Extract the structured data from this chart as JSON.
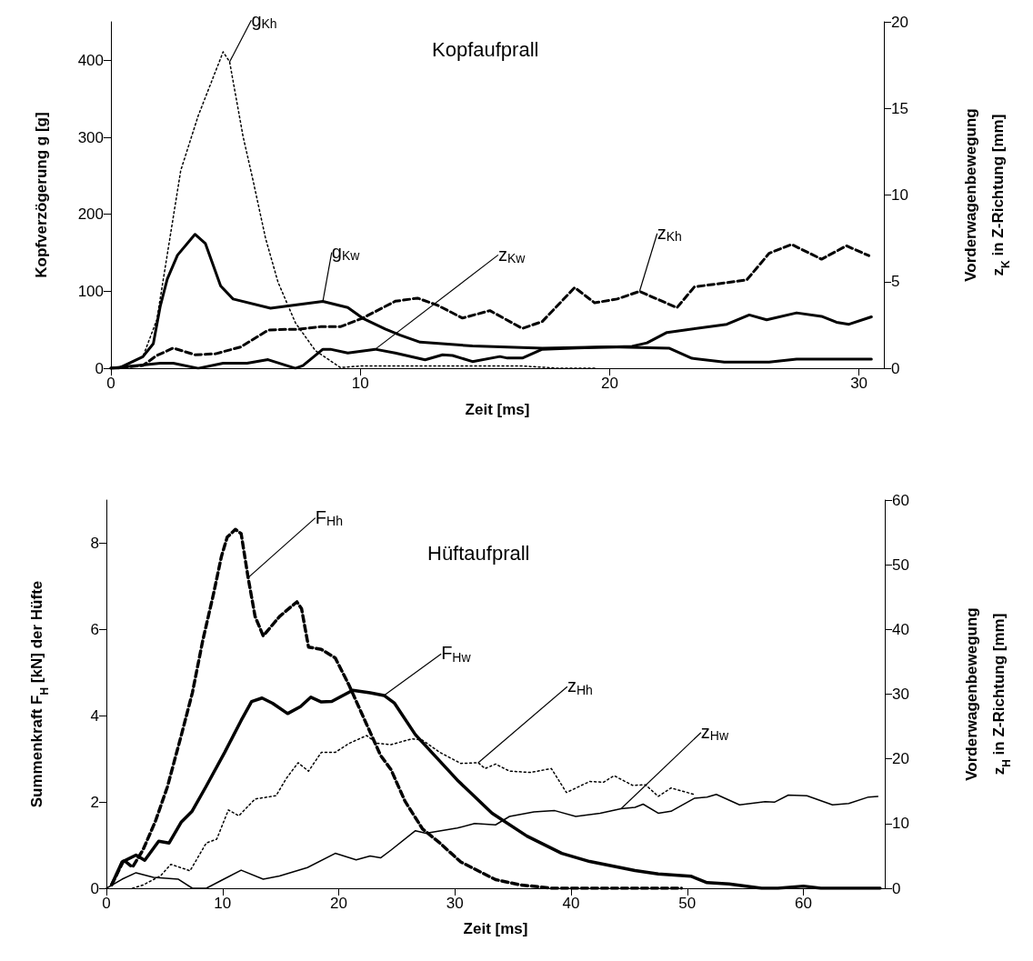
{
  "chart_data": [
    {
      "type": "line",
      "title": "Kopfaufprall",
      "xlabel": "Zeit [ms]",
      "ylabel": "Kopfverzögerung g [g]",
      "y2label": "Vorderwagenbewegung\nz$_{K}$ in Z-Richtung [mm]",
      "xlim": [
        0,
        31
      ],
      "xticks": [
        0,
        10,
        20,
        30
      ],
      "ylim": [
        0,
        450
      ],
      "yticks": [
        0,
        100,
        200,
        300,
        400
      ],
      "y2lim": [
        0,
        20
      ],
      "y2ticks": [
        0,
        5,
        10,
        15,
        20
      ],
      "grid": false,
      "marker": "none",
      "series": [
        {
          "name": "g$_{Kh}$",
          "color": "#000000",
          "line_style": "dotted",
          "x": [
            0,
            0.3,
            1.28,
            1.84,
            2.3,
            2.8,
            3.5,
            4.5,
            4.76,
            5.3,
            5.7,
            6.2,
            6.7,
            7.4,
            8.2,
            9.2,
            10,
            16.5,
            18,
            19.5
          ],
          "values": [
            0,
            0,
            15,
            63,
            156,
            257,
            328,
            411,
            398,
            301,
            244,
            169,
            112,
            59,
            23,
            1,
            3,
            3,
            0,
            0
          ]
        },
        {
          "name": "g$_{Kw}$",
          "color": "#000000",
          "line_style": "solid",
          "x": [
            0,
            0.3,
            1.28,
            1.7,
            1.98,
            2.26,
            2.67,
            3.37,
            3.79,
            4.4,
            4.9,
            6.4,
            8.5,
            9.5,
            10.1,
            11.0,
            11.6,
            12.4,
            14.5,
            17.3,
            20,
            22.4,
            23.3,
            24.6,
            26.4,
            27.5,
            30.5
          ],
          "values": [
            0,
            0,
            15,
            32,
            81,
            116,
            147,
            174,
            162,
            107,
            90,
            78,
            87,
            79,
            65,
            51,
            43,
            34,
            29,
            26,
            28,
            26,
            13,
            8,
            8,
            12,
            12
          ]
        },
        {
          "name": "z$_{Kw}$",
          "color": "#000000",
          "line_style": "solid",
          "axis": "y2",
          "x": [
            0,
            1.98,
            2.5,
            3.5,
            4.5,
            5.46,
            6.3,
            6.85,
            7.4,
            7.7,
            8.5,
            8.8,
            9.5,
            10.6,
            11.4,
            12.6,
            13.3,
            13.7,
            14.5,
            15.6,
            15.9,
            16.5,
            17.3,
            18.7,
            20.9,
            21.5,
            22.3,
            24.7,
            25.6,
            26.3,
            27.5,
            28.5,
            29.1,
            29.6,
            30.5
          ],
          "values": [
            0,
            0.29,
            0.29,
            0,
            0.29,
            0.29,
            0.5,
            0.25,
            0,
            0.16,
            1.1,
            1.1,
            0.88,
            1.1,
            0.88,
            0.49,
            0.78,
            0.74,
            0.39,
            0.68,
            0.59,
            0.59,
            1.1,
            1.17,
            1.27,
            1.47,
            2.07,
            2.54,
            3.08,
            2.8,
            3.2,
            3.0,
            2.66,
            2.54,
            2.97
          ]
        },
        {
          "name": "z$_{Kh}$",
          "color": "#000000",
          "line_style": "dashed",
          "axis": "y2",
          "x": [
            0,
            1.28,
            1.84,
            2.5,
            3.37,
            4.2,
            5.2,
            6.3,
            7.0,
            7.5,
            8.4,
            9.2,
            10.1,
            11.4,
            12.3,
            13.1,
            14.1,
            15.2,
            16.5,
            17.3,
            18.6,
            19.4,
            20.3,
            21.2,
            22.7,
            23.4,
            25.5,
            26.4,
            27.3,
            28.5,
            29.5,
            30.4
          ],
          "values": [
            0,
            0.16,
            0.74,
            1.17,
            0.78,
            0.84,
            1.23,
            2.2,
            2.25,
            2.25,
            2.4,
            2.4,
            2.9,
            3.87,
            4.05,
            3.64,
            2.9,
            3.33,
            2.3,
            2.7,
            4.66,
            3.78,
            4.0,
            4.44,
            3.5,
            4.7,
            5.1,
            6.64,
            7.15,
            6.3,
            7.07,
            6.5
          ]
        }
      ]
    },
    {
      "type": "line",
      "title": "Hüftaufprall",
      "xlabel": "Zeit [ms]",
      "ylabel": "Summenkraft F$_{H}$ [kN] der Hüfte",
      "y2label": "Vorderwagenbewegung\nz$_{H}$ in Z-Richtung [mm]",
      "xlim": [
        0,
        67
      ],
      "xticks": [
        0,
        10,
        20,
        30,
        40,
        50,
        60
      ],
      "ylim": [
        0,
        9
      ],
      "yticks": [
        0,
        2,
        4,
        6,
        8
      ],
      "y2lim": [
        0,
        60
      ],
      "y2ticks": [
        0,
        10,
        20,
        30,
        40,
        50,
        60
      ],
      "grid": false,
      "marker": "none",
      "series": [
        {
          "name": "F$_{Hh}$",
          "color": "#000000",
          "line_style": "dashed",
          "x": [
            0.45,
            1.5,
            2.25,
            3.15,
            4.2,
            5.25,
            6.46,
            7.4,
            8.3,
            9.2,
            9.9,
            10.4,
            11.1,
            11.6,
            12.2,
            12.8,
            13.5,
            14.9,
            16.4,
            16.8,
            17.4,
            18.5,
            19.7,
            20.9,
            22.4,
            23.6,
            24.5,
            25.7,
            27.2,
            28.7,
            30.5,
            33.5,
            35.6,
            38.3,
            49.5
          ],
          "values": [
            0.08,
            0.65,
            0.49,
            0.89,
            1.54,
            2.35,
            3.56,
            4.53,
            5.75,
            6.8,
            7.69,
            8.14,
            8.32,
            8.22,
            7.2,
            6.3,
            5.85,
            6.3,
            6.64,
            6.48,
            5.59,
            5.54,
            5.34,
            4.7,
            3.8,
            3.08,
            2.75,
            2.02,
            1.38,
            1.05,
            0.61,
            0.2,
            0.08,
            0,
            0
          ]
        },
        {
          "name": "F$_{Hw}$",
          "color": "#000000",
          "line_style": "solid",
          "x": [
            0.45,
            1.35,
            2.55,
            3.3,
            4.5,
            5.4,
            6.46,
            7.36,
            8.56,
            10.2,
            11.6,
            12.5,
            13.4,
            14.3,
            15.6,
            16.7,
            17.6,
            18.5,
            19.4,
            21.2,
            22.7,
            23.9,
            24.8,
            26.6,
            30.2,
            33.2,
            36.2,
            39.2,
            41.6,
            45.5,
            47.5,
            50.3,
            51.7,
            53.6,
            56.4,
            57.8,
            60,
            61.5,
            66.6
          ],
          "values": [
            0.08,
            0.61,
            0.77,
            0.65,
            1.09,
            1.05,
            1.54,
            1.78,
            2.35,
            3.16,
            3.89,
            4.33,
            4.41,
            4.29,
            4.05,
            4.21,
            4.43,
            4.32,
            4.33,
            4.59,
            4.53,
            4.47,
            4.29,
            3.56,
            2.51,
            1.74,
            1.21,
            0.81,
            0.62,
            0.41,
            0.33,
            0.28,
            0.13,
            0.1,
            0,
            0,
            0.05,
            0,
            0
          ]
        },
        {
          "name": "z$_{Hh}$",
          "color": "#000000",
          "line_style": "dotted",
          "axis": "y2",
          "x": [
            2.25,
            3.15,
            4.65,
            5.55,
            7.2,
            8.6,
            9.5,
            10.5,
            11.4,
            12.8,
            14.6,
            15.5,
            16.5,
            17.4,
            18.5,
            19.7,
            20.9,
            22.4,
            23.3,
            24.5,
            26.3,
            27.2,
            28.7,
            30.5,
            32,
            32.6,
            33.5,
            34.7,
            36.5,
            38.3,
            39.6,
            41.6,
            42.8,
            43.7,
            45.3,
            46.4,
            47.5,
            48.6,
            50.6
          ],
          "values": [
            0,
            0.5,
            1.9,
            3.7,
            2.7,
            7.0,
            7.6,
            12.1,
            11.2,
            13.8,
            14.3,
            17.0,
            19.4,
            18.1,
            21.0,
            21.0,
            22.4,
            23.6,
            22.4,
            22.2,
            23.1,
            22.9,
            21.0,
            19.3,
            19.4,
            18.5,
            19.2,
            18.1,
            17.9,
            18.5,
            14.8,
            16.5,
            16.4,
            17.4,
            15.9,
            16.0,
            14.2,
            15.5,
            14.5
          ]
        },
        {
          "name": "z$_{Hw}$",
          "color": "#000000",
          "line_style": "solid",
          "axis": "y2",
          "x": [
            0,
            1.35,
            2.55,
            4.05,
            6.2,
            7.4,
            8.6,
            10.1,
            11.6,
            13.5,
            14.9,
            17.3,
            19.7,
            21.5,
            22.7,
            23.6,
            24.5,
            26.6,
            27.5,
            30.2,
            31.7,
            33.5,
            34.7,
            36.8,
            38.6,
            40.4,
            42.5,
            44.3,
            45.5,
            46.2,
            47.5,
            48.6,
            50.6,
            51.7,
            52.5,
            54.5,
            56.7,
            57.5,
            58.7,
            60.3,
            62.5,
            63.9,
            65.6,
            66.4
          ],
          "values": [
            0,
            1.4,
            2.4,
            1.7,
            1.4,
            0,
            0,
            1.4,
            2.8,
            1.4,
            1.9,
            3.2,
            5.4,
            4.4,
            5.0,
            4.7,
            5.9,
            8.9,
            8.5,
            9.3,
            10.0,
            9.8,
            11.1,
            11.8,
            12.0,
            11.1,
            11.6,
            12.3,
            12.5,
            13.0,
            11.6,
            11.9,
            13.9,
            14.1,
            14.5,
            12.9,
            13.4,
            13.3,
            14.4,
            14.3,
            12.9,
            13.1,
            14.1,
            14.2
          ]
        }
      ]
    }
  ]
}
